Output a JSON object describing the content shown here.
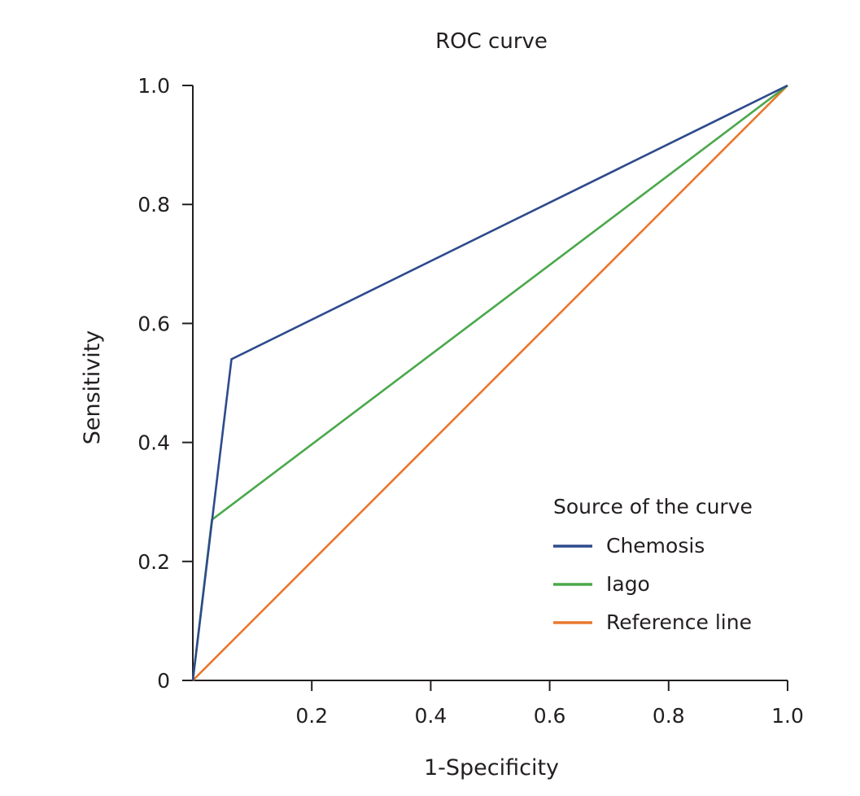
{
  "chart_data": {
    "type": "line",
    "title": "ROC curve",
    "xlabel": "1-Specificity",
    "ylabel": "Sensitivity",
    "xlim": [
      0,
      1.0
    ],
    "ylim": [
      0,
      1.0
    ],
    "x_ticks": [
      0.2,
      0.4,
      0.6,
      0.8,
      1.0
    ],
    "x_tick_labels": [
      "0.2",
      "0.4",
      "0.6",
      "0.8",
      "1.0"
    ],
    "y_ticks": [
      0,
      0.2,
      0.4,
      0.6,
      0.8,
      1.0
    ],
    "y_tick_labels": [
      "0",
      "0.2",
      "0.4",
      "0.6",
      "0.8",
      "1.0"
    ],
    "grid": false,
    "legend": {
      "title": "Source of the curve",
      "position": "bottom-right"
    },
    "series": [
      {
        "name": "Chemosis",
        "color": "#2e4a8c",
        "x": [
          0,
          0.065,
          1.0
        ],
        "y": [
          0,
          0.54,
          1.0
        ]
      },
      {
        "name": "Iago",
        "color": "#4aa84a",
        "x": [
          0,
          0.032,
          1.0
        ],
        "y": [
          0,
          0.27,
          1.0
        ]
      },
      {
        "name": "Reference line",
        "color": "#e8782e",
        "x": [
          0,
          1.0
        ],
        "y": [
          0,
          1.0
        ]
      }
    ]
  }
}
